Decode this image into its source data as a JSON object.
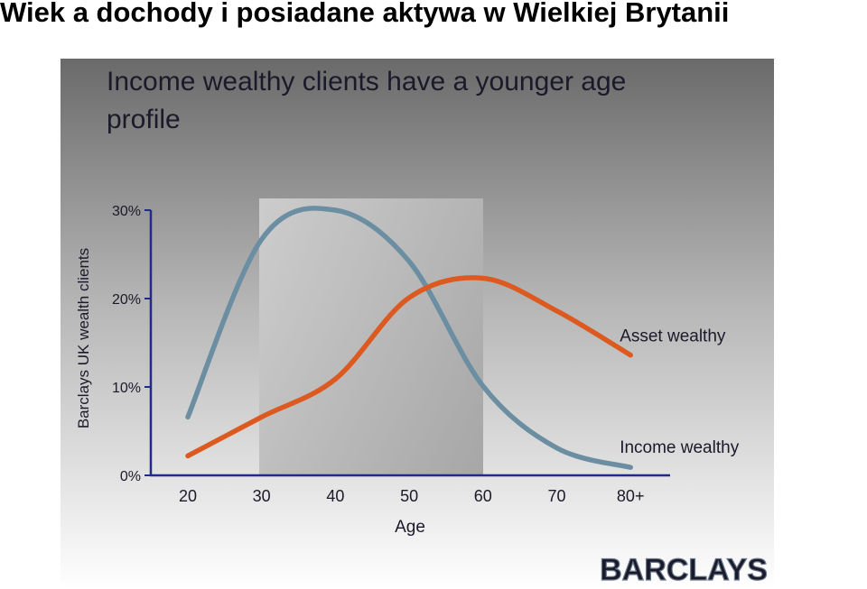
{
  "page_title": "Wiek a dochody i posiadane aktywa w Wielkiej Brytanii",
  "logo": "BARCLAYS",
  "chart_data": {
    "type": "line",
    "title": "Income wealthy clients have a younger age profile",
    "x_label": "Age",
    "y_label": "Barclays UK wealth clients",
    "categories": [
      "20",
      "30",
      "40",
      "50",
      "60",
      "70",
      "80+"
    ],
    "ylim": [
      0,
      30
    ],
    "yticks": [
      {
        "value": 0,
        "label": "0%"
      },
      {
        "value": 10,
        "label": "10%"
      },
      {
        "value": 20,
        "label": "20%"
      },
      {
        "value": 30,
        "label": "30%"
      }
    ],
    "series": [
      {
        "name": "Income wealthy",
        "color": "#6b8ea2",
        "values": [
          6.6,
          26.7,
          30,
          24.2,
          10.1,
          3.1,
          0.9
        ]
      },
      {
        "name": "Asset wealthy",
        "color": "#dc5a20",
        "values": [
          2.2,
          6.6,
          10.9,
          20.1,
          22.3,
          18.6,
          13.6
        ]
      }
    ]
  }
}
